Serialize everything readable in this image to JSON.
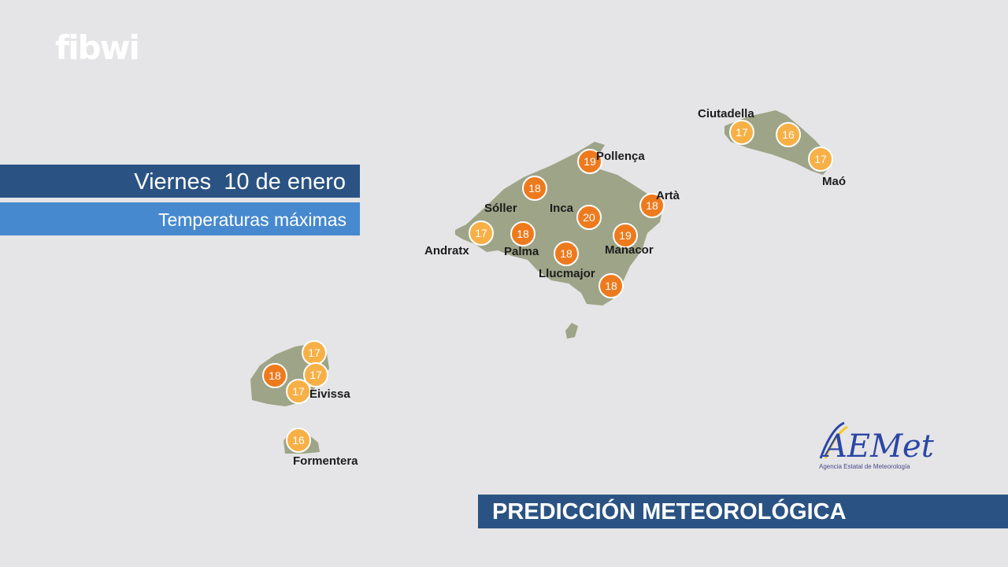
{
  "brand": {
    "logo_text": "fibwi"
  },
  "header": {
    "date": "Viernes  10 de enero",
    "subtitle": "Temperaturas máximas"
  },
  "footer": {
    "title": "PREDICCIÓN METEOROLÓGICA"
  },
  "agency": {
    "logo_text": "AEMet",
    "name": "Agencia Estatal de Meteorología"
  },
  "colors": {
    "background": "#e5e4e6",
    "land": "#9ea487",
    "temp_18_plus": "#ee7a1e",
    "temp_below_18": "#f7b046",
    "banner_dark": "#2a5383",
    "banner_light": "#4689cf"
  },
  "temperature_markers": [
    {
      "value": 19
    },
    {
      "value": 18
    },
    {
      "value": 20
    },
    {
      "value": 18
    },
    {
      "value": 17
    },
    {
      "value": 18
    },
    {
      "value": 19
    },
    {
      "value": 18
    },
    {
      "value": 18
    },
    {
      "value": 17
    },
    {
      "value": 16
    },
    {
      "value": 17
    },
    {
      "value": 17
    },
    {
      "value": 18
    },
    {
      "value": 17
    },
    {
      "value": 17
    },
    {
      "value": 16
    }
  ],
  "place_labels": [
    "Pollença",
    "Artà",
    "Sóller",
    "Inca",
    "Andratx",
    "Palma",
    "Manacor",
    "Llucmajor",
    "Ciutadella",
    "Maó",
    "Eivissa",
    "Formentera"
  ]
}
